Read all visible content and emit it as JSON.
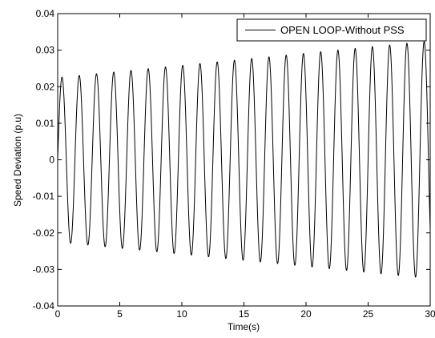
{
  "chart_data": {
    "type": "line",
    "xlabel": "Time(s)",
    "ylabel": "Speed Deviation (p.u)",
    "xlim": [
      0,
      30
    ],
    "ylim": [
      -0.04,
      0.04
    ],
    "xticks": [
      0,
      5,
      10,
      15,
      20,
      25,
      30
    ],
    "yticks": [
      -0.04,
      -0.03,
      -0.02,
      -0.01,
      0,
      0.01,
      0.02,
      0.03,
      0.04
    ],
    "xtick_labels": [
      "0",
      "5",
      "10",
      "15",
      "20",
      "25",
      "30"
    ],
    "ytick_labels": [
      "-0.04",
      "-0.03",
      "-0.02",
      "-0.01",
      "0",
      "0.01",
      "0.02",
      "0.03",
      "0.04"
    ],
    "grid": false,
    "legend_position": "top-right",
    "line_color": "#000000",
    "series": [
      {
        "name": "OPEN LOOP-Without PSS",
        "model": "sinusoid",
        "frequency_hz": 0.72,
        "amplitude_at_start": 0.0225,
        "amplitude_at_end": 0.0325,
        "initial_value": 0.0
      }
    ]
  }
}
